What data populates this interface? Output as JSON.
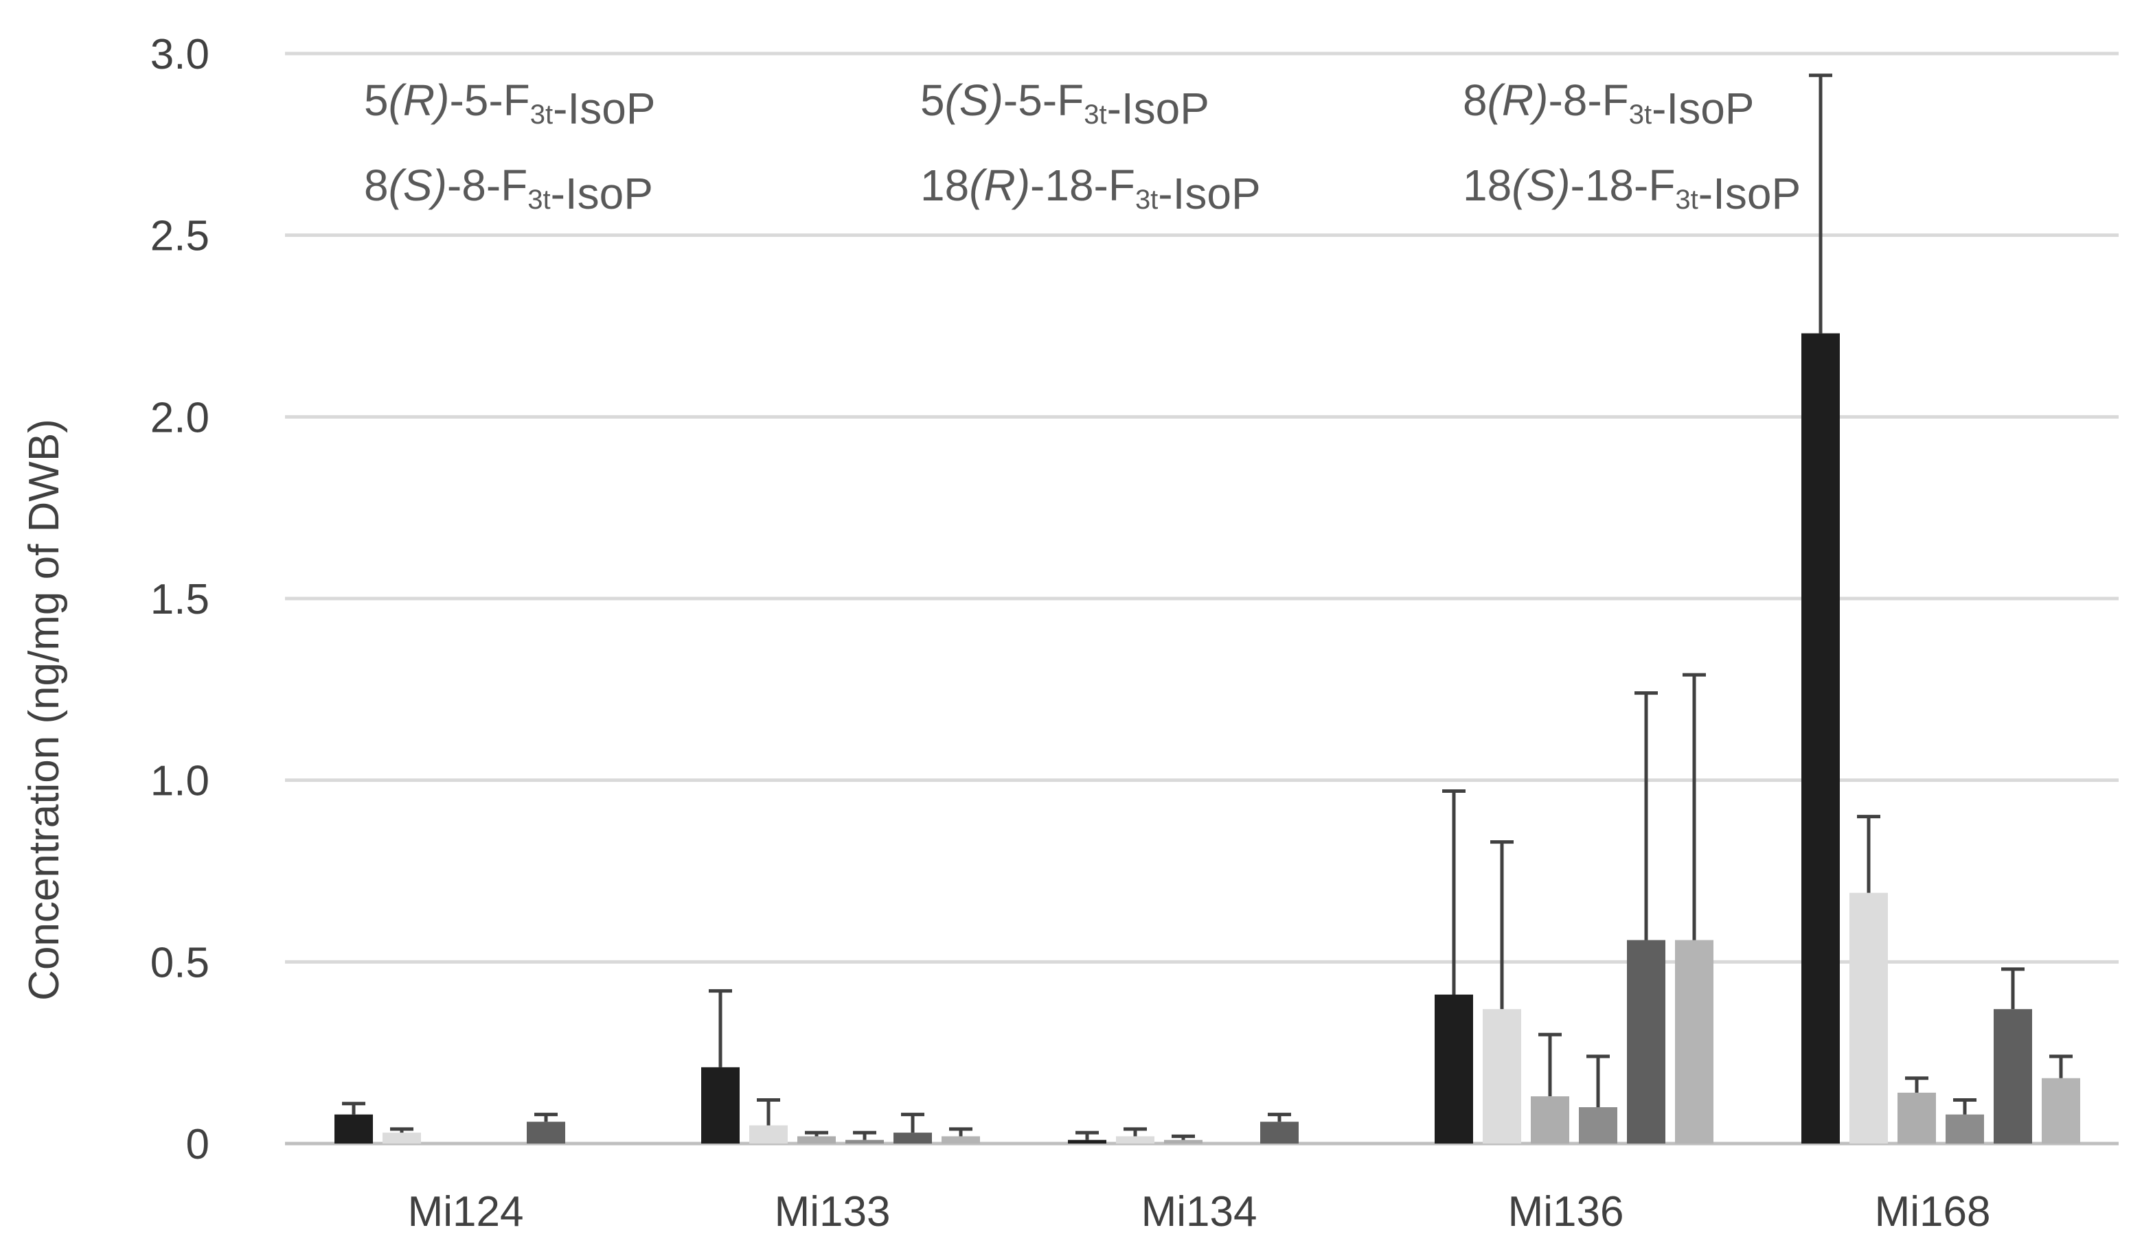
{
  "chart_data": {
    "type": "bar",
    "title": "",
    "xlabel": "",
    "ylabel": "Concentration (ng/mg of DWB)",
    "ylim": [
      0,
      3.0
    ],
    "yticks": [
      "0",
      "0.5",
      "1.0",
      "1.5",
      "2.0",
      "2.5",
      "3.0"
    ],
    "grid": true,
    "legend_position": "top",
    "categories": [
      "Mi124",
      "Mi133",
      "Mi134",
      "Mi136",
      "Mi168"
    ],
    "series": [
      {
        "name": "5(R)-5-F3t-IsoP",
        "label_parts": [
          [
            "",
            "5"
          ],
          [
            "it",
            "(R)"
          ],
          [
            "",
            "-5-F"
          ],
          [
            "sub",
            "3t"
          ],
          [
            "",
            "-IsoP"
          ]
        ],
        "color": "#1e1e1e",
        "values": [
          0.08,
          0.21,
          0.01,
          0.41,
          2.23
        ],
        "errors": [
          0.03,
          0.21,
          0.02,
          0.56,
          0.71
        ]
      },
      {
        "name": "8(S)-8-F3t-IsoP",
        "label_parts": [
          [
            "",
            "8"
          ],
          [
            "it",
            "(S)"
          ],
          [
            "",
            "-8-F"
          ],
          [
            "sub",
            "3t"
          ],
          [
            "",
            "-IsoP"
          ]
        ],
        "color": "#dcdcdc",
        "values": [
          0.03,
          0.05,
          0.02,
          0.37,
          0.69
        ],
        "errors": [
          0.01,
          0.07,
          0.02,
          0.46,
          0.21
        ]
      },
      {
        "name": "5(S)-5-F3t-IsoP",
        "label_parts": [
          [
            "",
            "5"
          ],
          [
            "it",
            "(S)"
          ],
          [
            "",
            "-5-F"
          ],
          [
            "sub",
            "3t"
          ],
          [
            "",
            "-IsoP"
          ]
        ],
        "color": "#adadad",
        "values": [
          0.0,
          0.02,
          0.01,
          0.13,
          0.14
        ],
        "errors": [
          0.0,
          0.01,
          0.01,
          0.17,
          0.04
        ]
      },
      {
        "name": "18(R)-18-F3t-IsoP",
        "label_parts": [
          [
            "",
            "18"
          ],
          [
            "it",
            "(R)"
          ],
          [
            "",
            "-18-F"
          ],
          [
            "sub",
            "3t"
          ],
          [
            "",
            "-IsoP"
          ]
        ],
        "color": "#8c8c8c",
        "values": [
          0.0,
          0.01,
          0.0,
          0.1,
          0.08
        ],
        "errors": [
          0.0,
          0.02,
          0.0,
          0.14,
          0.04
        ]
      },
      {
        "name": "8(R)-8-F3t-IsoP",
        "label_parts": [
          [
            "",
            "8"
          ],
          [
            "it",
            "(R)"
          ],
          [
            "",
            "-8-F"
          ],
          [
            "sub",
            "3t"
          ],
          [
            "",
            "-IsoP"
          ]
        ],
        "color": "#5f5f5f",
        "values": [
          0.06,
          0.03,
          0.06,
          0.56,
          0.37
        ],
        "errors": [
          0.02,
          0.05,
          0.02,
          0.68,
          0.11
        ]
      },
      {
        "name": "18(S)-18-F3t-IsoP",
        "label_parts": [
          [
            "",
            "18"
          ],
          [
            "it",
            "(S)"
          ],
          [
            "",
            "-18-F"
          ],
          [
            "sub",
            "3t"
          ],
          [
            "",
            "-IsoP"
          ]
        ],
        "color": "#b4b4b4",
        "values": [
          0.0,
          0.02,
          0.0,
          0.56,
          0.18
        ],
        "errors": [
          0.0,
          0.02,
          0.0,
          0.73,
          0.06
        ]
      }
    ]
  }
}
